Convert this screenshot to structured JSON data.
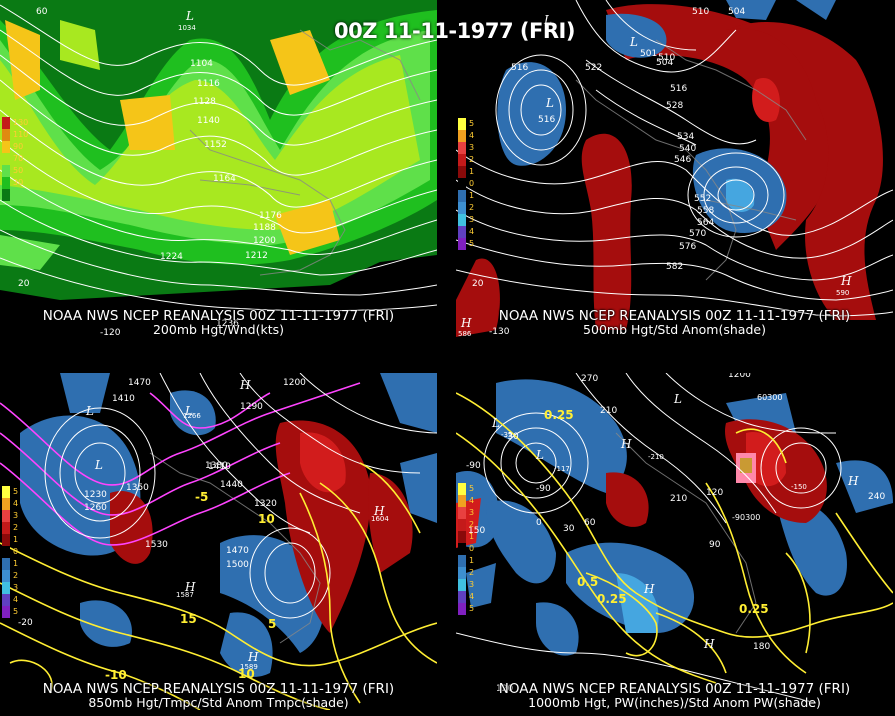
{
  "main_title": "00Z 11-11-1977 (FRI)",
  "panels": [
    {
      "id": "200mb",
      "caption_line1": "NOAA NWS NCEP REANALYSIS 00Z 11-11-1977 (FRI)",
      "caption_line2": "200mb Hgt/Wnd(kts)",
      "legend": [
        "130",
        "110",
        "90",
        "70",
        "50",
        "30"
      ],
      "contour_labels": [
        "1104",
        "1116",
        "1128",
        "1140",
        "1152",
        "1164",
        "1176",
        "1188",
        "1200",
        "1212",
        "1224",
        "1236"
      ],
      "lat_labels": [
        "60",
        "20",
        "-120"
      ],
      "pressure_centers": [
        "L",
        "1034"
      ]
    },
    {
      "id": "500mb",
      "caption_line1": "NOAA NWS NCEP REANALYSIS 00Z 11-11-1977 (FRI)",
      "caption_line2": "500mb Hgt/Std Anom(shade)",
      "legend": [
        "5",
        "4",
        "3",
        "2",
        "1",
        "0",
        "1",
        "2",
        "3",
        "4",
        "5"
      ],
      "contour_labels": [
        "510",
        "504",
        "516",
        "522",
        "528",
        "534",
        "540",
        "546",
        "552",
        "558",
        "564",
        "570",
        "576",
        "582",
        "516",
        "504",
        "510",
        "516",
        "501",
        "590",
        "586"
      ],
      "lat_labels": [
        "20",
        "-130"
      ],
      "pressure_centers": [
        "L",
        "L",
        "L",
        "H",
        "H"
      ]
    },
    {
      "id": "850mb",
      "caption_line1": "NOAA NWS NCEP REANALYSIS 00Z 11-11-1977 (FRI)",
      "caption_line2": "850mb Hgt/Tmpc/Std Anom Tmpc(shade)",
      "legend": [
        "5",
        "4",
        "3",
        "2",
        "1",
        "0",
        "1",
        "2",
        "3",
        "4",
        "5"
      ],
      "contour_labels": [
        "1470",
        "1410",
        "1200",
        "1230",
        "1260",
        "1290",
        "1320",
        "1350",
        "1380",
        "1410",
        "1440",
        "1470",
        "1500",
        "1530",
        "1587",
        "1589",
        "1604",
        "1266",
        "-10",
        "10",
        "-5",
        "5",
        "15",
        "10"
      ],
      "lat_labels": [
        "-20"
      ],
      "pressure_centers": [
        "L",
        "L",
        "L",
        "H",
        "H",
        "H",
        "H"
      ]
    },
    {
      "id": "1000mb",
      "caption_line1": "NOAA NWS NCEP REANALYSIS 00Z 11-11-1977 (FRI)",
      "caption_line2": "1000mb Hgt, PW(inches)/Std Anom PW(shade)",
      "legend": [
        "5",
        "4",
        "3",
        "2",
        "1",
        "0",
        "1",
        "2",
        "3",
        "4",
        "5"
      ],
      "contour_labels": [
        "270",
        "210",
        "1200",
        "-90",
        "-30",
        "0",
        "30",
        "60",
        "90",
        "120",
        "150",
        "180",
        "210",
        "240",
        "-117",
        "-35",
        "0.25",
        "0.5",
        "0.25",
        "0.25",
        "-210",
        "-150",
        "60300",
        "-90300"
      ],
      "lat_labels": [
        "120",
        "-90"
      ],
      "pressure_centers": [
        "L",
        "L",
        "L",
        "H",
        "H",
        "H",
        "H"
      ]
    }
  ],
  "colors": {
    "wind_dark": "#0a7a14",
    "wind_mid": "#1fbf1f",
    "wind_light": "#5fe04a",
    "wind_lime": "#a8e820",
    "wind_yellow": "#f5c518",
    "anom_red": "#a50d0d",
    "anom_red2": "#d21c1c",
    "anom_blue": "#2f6fb0",
    "anom_lightblue": "#45a6e0",
    "temp_yellow": "#ffee33",
    "temp_magenta": "#ff44ff"
  }
}
